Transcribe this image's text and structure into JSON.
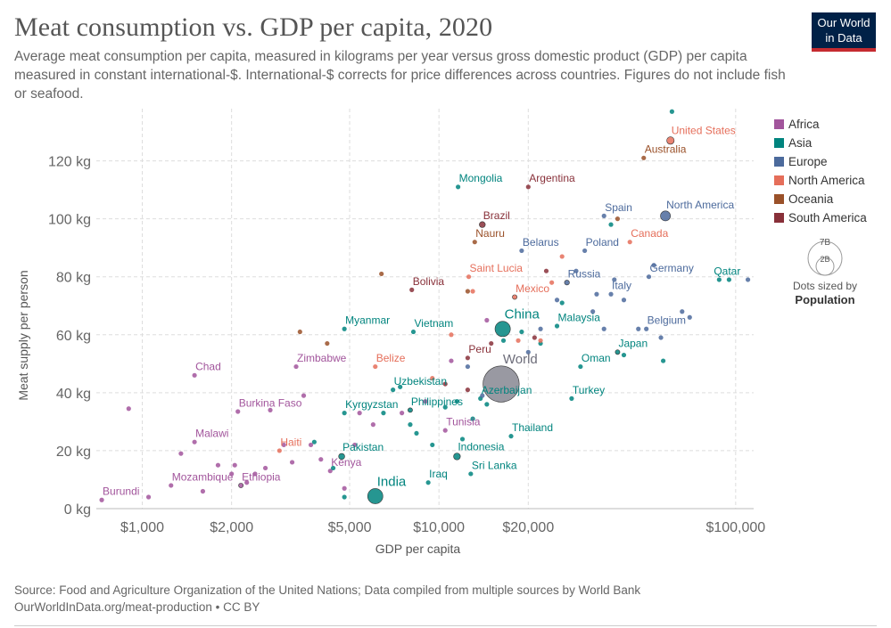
{
  "header": {
    "title": "Meat consumption vs. GDP per capita, 2020",
    "subtitle": "Average meat consumption per capita, measured in kilograms per year versus gross domestic product (GDP) per capita measured in constant international-$. International-$ corrects for price differences across countries. Figures do not include fish or seafood.",
    "logo_line1": "Our World",
    "logo_line2": "in Data"
  },
  "footer": {
    "source": "Source: Food and Agriculture Organization of the United Nations; Data compiled from multiple sources by World Bank",
    "url": "OurWorldInData.org/meat-production • CC BY"
  },
  "colors": {
    "Africa": "#a2559c",
    "Asia": "#00847e",
    "Europe": "#4c6a9c",
    "North America": "#e56e5a",
    "Oceania": "#9a5129",
    "South America": "#883039",
    "World": "#6d6d7a"
  },
  "size_legend": {
    "big": "7B",
    "small": "2B",
    "caption": "Dots sized by",
    "caption_bold": "Population"
  },
  "chart_data": {
    "type": "scatter",
    "title": "Meat consumption vs. GDP per capita, 2020",
    "xlabel": "GDP per capita",
    "ylabel": "Meat supply per person",
    "x_scale": "log",
    "xlim": [
      700,
      115000
    ],
    "ylim": [
      0,
      138
    ],
    "x_ticks": [
      1000,
      2000,
      5000,
      10000,
      20000,
      100000
    ],
    "x_tick_labels": [
      "$1,000",
      "$2,000",
      "$5,000",
      "$10,000",
      "$20,000",
      "$100,000"
    ],
    "y_ticks": [
      0,
      20,
      40,
      60,
      80,
      100,
      120
    ],
    "y_tick_labels": [
      "0 kg",
      "20 kg",
      "40 kg",
      "60 kg",
      "80 kg",
      "100 kg",
      "120 kg"
    ],
    "grid": true,
    "legend_position": "right",
    "legend": [
      "Africa",
      "Asia",
      "Europe",
      "North America",
      "Oceania",
      "South America"
    ],
    "points": [
      {
        "label": "World",
        "region": "World",
        "x": 16200,
        "y": 43,
        "pop": 7800
      },
      {
        "label": "China",
        "region": "Asia",
        "x": 16400,
        "y": 62,
        "pop": 1400
      },
      {
        "label": "India",
        "region": "Asia",
        "x": 6100,
        "y": 4.3,
        "pop": 1380
      },
      {
        "label": "United States",
        "region": "North America",
        "x": 60300,
        "y": 127,
        "pop": 331
      },
      {
        "label": "North America",
        "region": "Europe",
        "x": 58000,
        "y": 101,
        "pop": 590
      },
      {
        "label": "Australia",
        "region": "Oceania",
        "x": 49000,
        "y": 121,
        "pop": 25
      },
      {
        "label": "Mongolia",
        "region": "Asia",
        "x": 11600,
        "y": 111,
        "pop": 3
      },
      {
        "label": "Argentina",
        "region": "South America",
        "x": 20000,
        "y": 111,
        "pop": 45
      },
      {
        "label": "Brazil",
        "region": "South America",
        "x": 14000,
        "y": 98,
        "pop": 212
      },
      {
        "label": "Nauru",
        "region": "Oceania",
        "x": 13200,
        "y": 92,
        "pop": 1
      },
      {
        "label": "Spain",
        "region": "Europe",
        "x": 36000,
        "y": 101,
        "pop": 47
      },
      {
        "label": "Canada",
        "region": "North America",
        "x": 44000,
        "y": 92,
        "pop": 38
      },
      {
        "label": "Belarus",
        "region": "Europe",
        "x": 19000,
        "y": 89,
        "pop": 9
      },
      {
        "label": "Poland",
        "region": "Europe",
        "x": 31000,
        "y": 89,
        "pop": 38
      },
      {
        "label": "Bolivia",
        "region": "South America",
        "x": 8100,
        "y": 75.5,
        "pop": 12
      },
      {
        "label": "Saint Lucia",
        "region": "North America",
        "x": 12600,
        "y": 80,
        "pop": 1
      },
      {
        "label": "Russia",
        "region": "Europe",
        "x": 27000,
        "y": 78,
        "pop": 144
      },
      {
        "label": "Mexico",
        "region": "North America",
        "x": 18000,
        "y": 73,
        "pop": 129
      },
      {
        "label": "Germany",
        "region": "Europe",
        "x": 51000,
        "y": 80,
        "pop": 83
      },
      {
        "label": "Qatar",
        "region": "Asia",
        "x": 88000,
        "y": 79,
        "pop": 3
      },
      {
        "label": "Italy",
        "region": "Europe",
        "x": 38000,
        "y": 74,
        "pop": 60
      },
      {
        "label": "Malaysia",
        "region": "Asia",
        "x": 25000,
        "y": 63,
        "pop": 32
      },
      {
        "label": "Belgium",
        "region": "Europe",
        "x": 50000,
        "y": 62,
        "pop": 12
      },
      {
        "label": "Myanmar",
        "region": "Asia",
        "x": 4800,
        "y": 62,
        "pop": 54
      },
      {
        "label": "Vietnam",
        "region": "Asia",
        "x": 8200,
        "y": 61,
        "pop": 97
      },
      {
        "label": "Chad",
        "region": "Africa",
        "x": 1500,
        "y": 46,
        "pop": 16
      },
      {
        "label": "Zimbabwe",
        "region": "Africa",
        "x": 3300,
        "y": 49,
        "pop": 15
      },
      {
        "label": "Belize",
        "region": "North America",
        "x": 6100,
        "y": 49,
        "pop": 1
      },
      {
        "label": "Peru",
        "region": "South America",
        "x": 12500,
        "y": 52,
        "pop": 33
      },
      {
        "label": "Japan",
        "region": "Asia",
        "x": 40000,
        "y": 54,
        "pop": 126
      },
      {
        "label": "Oman",
        "region": "Asia",
        "x": 30000,
        "y": 49,
        "pop": 5
      },
      {
        "label": "Uzbekistan",
        "region": "Asia",
        "x": 7000,
        "y": 41,
        "pop": 34
      },
      {
        "label": "Azerbaijan",
        "region": "Asia",
        "x": 13800,
        "y": 38,
        "pop": 10
      },
      {
        "label": "Turkey",
        "region": "Asia",
        "x": 28000,
        "y": 38,
        "pop": 84
      },
      {
        "label": "Burkina Faso",
        "region": "Africa",
        "x": 2100,
        "y": 33.5,
        "pop": 21
      },
      {
        "label": "Kyrgyzstan",
        "region": "Asia",
        "x": 4800,
        "y": 33,
        "pop": 7
      },
      {
        "label": "Philippines",
        "region": "Asia",
        "x": 8000,
        "y": 34,
        "pop": 110
      },
      {
        "label": "Tunisia",
        "region": "Africa",
        "x": 10500,
        "y": 27,
        "pop": 12
      },
      {
        "label": "Thailand",
        "region": "Asia",
        "x": 17500,
        "y": 25,
        "pop": 70
      },
      {
        "label": "Malawi",
        "region": "Africa",
        "x": 1500,
        "y": 23,
        "pop": 19
      },
      {
        "label": "Haiti",
        "region": "North America",
        "x": 2900,
        "y": 20,
        "pop": 11
      },
      {
        "label": "Pakistan",
        "region": "Asia",
        "x": 4700,
        "y": 18,
        "pop": 220
      },
      {
        "label": "Indonesia",
        "region": "Asia",
        "x": 11500,
        "y": 18,
        "pop": 274
      },
      {
        "label": "Kenya",
        "region": "Africa",
        "x": 4300,
        "y": 13,
        "pop": 54
      },
      {
        "label": "Sri Lanka",
        "region": "Asia",
        "x": 12800,
        "y": 12,
        "pop": 22
      },
      {
        "label": "Mozambique",
        "region": "Africa",
        "x": 1250,
        "y": 8,
        "pop": 31
      },
      {
        "label": "Ethiopia",
        "region": "Africa",
        "x": 2150,
        "y": 8,
        "pop": 115
      },
      {
        "label": "Iraq",
        "region": "Asia",
        "x": 9200,
        "y": 9,
        "pop": 40
      },
      {
        "label": "Burundi",
        "region": "Africa",
        "x": 730,
        "y": 3,
        "pop": 12
      },
      {
        "label": "",
        "region": "Africa",
        "x": 900,
        "y": 34.5,
        "pop": 9
      },
      {
        "label": "",
        "region": "Africa",
        "x": 1050,
        "y": 4,
        "pop": 5
      },
      {
        "label": "",
        "region": "Africa",
        "x": 1350,
        "y": 19,
        "pop": 8
      },
      {
        "label": "",
        "region": "Africa",
        "x": 1600,
        "y": 6,
        "pop": 6
      },
      {
        "label": "",
        "region": "Africa",
        "x": 1800,
        "y": 15,
        "pop": 7
      },
      {
        "label": "",
        "region": "Africa",
        "x": 2000,
        "y": 12,
        "pop": 6
      },
      {
        "label": "",
        "region": "Africa",
        "x": 2050,
        "y": 15,
        "pop": 5
      },
      {
        "label": "",
        "region": "Africa",
        "x": 2250,
        "y": 9,
        "pop": 10
      },
      {
        "label": "",
        "region": "Africa",
        "x": 2400,
        "y": 12,
        "pop": 8
      },
      {
        "label": "",
        "region": "Africa",
        "x": 2600,
        "y": 14,
        "pop": 5
      },
      {
        "label": "",
        "region": "Africa",
        "x": 2700,
        "y": 34,
        "pop": 7
      },
      {
        "label": "",
        "region": "Africa",
        "x": 3000,
        "y": 22,
        "pop": 6
      },
      {
        "label": "",
        "region": "Africa",
        "x": 3200,
        "y": 16,
        "pop": 9
      },
      {
        "label": "",
        "region": "Africa",
        "x": 3500,
        "y": 39,
        "pop": 6
      },
      {
        "label": "",
        "region": "Africa",
        "x": 3700,
        "y": 22,
        "pop": 5
      },
      {
        "label": "",
        "region": "Africa",
        "x": 4000,
        "y": 17,
        "pop": 6
      },
      {
        "label": "",
        "region": "Africa",
        "x": 4800,
        "y": 7,
        "pop": 8
      },
      {
        "label": "",
        "region": "Africa",
        "x": 5200,
        "y": 22,
        "pop": 5
      },
      {
        "label": "",
        "region": "Africa",
        "x": 5400,
        "y": 33,
        "pop": 6
      },
      {
        "label": "",
        "region": "Africa",
        "x": 6000,
        "y": 29,
        "pop": 5
      },
      {
        "label": "",
        "region": "Africa",
        "x": 7500,
        "y": 33,
        "pop": 5
      },
      {
        "label": "",
        "region": "Africa",
        "x": 9000,
        "y": 37,
        "pop": 6
      },
      {
        "label": "",
        "region": "Africa",
        "x": 11000,
        "y": 51,
        "pop": 5
      },
      {
        "label": "",
        "region": "Africa",
        "x": 14500,
        "y": 65,
        "pop": 5
      },
      {
        "label": "",
        "region": "Asia",
        "x": 3800,
        "y": 23,
        "pop": 6
      },
      {
        "label": "",
        "region": "Asia",
        "x": 4400,
        "y": 14,
        "pop": 5
      },
      {
        "label": "",
        "region": "Asia",
        "x": 4800,
        "y": 4,
        "pop": 6
      },
      {
        "label": "",
        "region": "Asia",
        "x": 6500,
        "y": 33,
        "pop": 5
      },
      {
        "label": "",
        "region": "Asia",
        "x": 7400,
        "y": 42,
        "pop": 5
      },
      {
        "label": "",
        "region": "Asia",
        "x": 8000,
        "y": 29,
        "pop": 6
      },
      {
        "label": "",
        "region": "Asia",
        "x": 8400,
        "y": 26,
        "pop": 5
      },
      {
        "label": "",
        "region": "Asia",
        "x": 9500,
        "y": 22,
        "pop": 5
      },
      {
        "label": "",
        "region": "Asia",
        "x": 10500,
        "y": 35,
        "pop": 6
      },
      {
        "label": "",
        "region": "Asia",
        "x": 11500,
        "y": 37,
        "pop": 5
      },
      {
        "label": "",
        "region": "Asia",
        "x": 12000,
        "y": 24,
        "pop": 6
      },
      {
        "label": "",
        "region": "Asia",
        "x": 13000,
        "y": 31,
        "pop": 5
      },
      {
        "label": "",
        "region": "Asia",
        "x": 14500,
        "y": 36,
        "pop": 5
      },
      {
        "label": "",
        "region": "Asia",
        "x": 16500,
        "y": 58,
        "pop": 6
      },
      {
        "label": "",
        "region": "Asia",
        "x": 19000,
        "y": 61,
        "pop": 5
      },
      {
        "label": "",
        "region": "Asia",
        "x": 22000,
        "y": 57,
        "pop": 6
      },
      {
        "label": "",
        "region": "Asia",
        "x": 26000,
        "y": 71,
        "pop": 5
      },
      {
        "label": "",
        "region": "Asia",
        "x": 38000,
        "y": 98,
        "pop": 6
      },
      {
        "label": "",
        "region": "Asia",
        "x": 42000,
        "y": 53,
        "pop": 5
      },
      {
        "label": "",
        "region": "Asia",
        "x": 57000,
        "y": 51,
        "pop": 6
      },
      {
        "label": "",
        "region": "Asia",
        "x": 61000,
        "y": 137,
        "pop": 5
      },
      {
        "label": "",
        "region": "Asia",
        "x": 95000,
        "y": 79,
        "pop": 5
      },
      {
        "label": "",
        "region": "Europe",
        "x": 12500,
        "y": 49,
        "pop": 5
      },
      {
        "label": "",
        "region": "Europe",
        "x": 14000,
        "y": 39,
        "pop": 6
      },
      {
        "label": "",
        "region": "Europe",
        "x": 20000,
        "y": 54,
        "pop": 5
      },
      {
        "label": "",
        "region": "Europe",
        "x": 22000,
        "y": 62,
        "pop": 6
      },
      {
        "label": "",
        "region": "Europe",
        "x": 25000,
        "y": 72,
        "pop": 5
      },
      {
        "label": "",
        "region": "Europe",
        "x": 29000,
        "y": 82,
        "pop": 6
      },
      {
        "label": "",
        "region": "Europe",
        "x": 33000,
        "y": 68,
        "pop": 5
      },
      {
        "label": "",
        "region": "Europe",
        "x": 34000,
        "y": 74,
        "pop": 6
      },
      {
        "label": "",
        "region": "Europe",
        "x": 36000,
        "y": 62,
        "pop": 5
      },
      {
        "label": "",
        "region": "Europe",
        "x": 39000,
        "y": 79,
        "pop": 6
      },
      {
        "label": "",
        "region": "Europe",
        "x": 42000,
        "y": 72,
        "pop": 5
      },
      {
        "label": "",
        "region": "Europe",
        "x": 47000,
        "y": 62,
        "pop": 6
      },
      {
        "label": "",
        "region": "Europe",
        "x": 53000,
        "y": 84,
        "pop": 5
      },
      {
        "label": "",
        "region": "Europe",
        "x": 56000,
        "y": 59,
        "pop": 6
      },
      {
        "label": "",
        "region": "Europe",
        "x": 66000,
        "y": 68,
        "pop": 5
      },
      {
        "label": "",
        "region": "Europe",
        "x": 70000,
        "y": 66,
        "pop": 5
      },
      {
        "label": "",
        "region": "Europe",
        "x": 110000,
        "y": 79,
        "pop": 5
      },
      {
        "label": "",
        "region": "North America",
        "x": 9500,
        "y": 45,
        "pop": 5
      },
      {
        "label": "",
        "region": "North America",
        "x": 11000,
        "y": 60,
        "pop": 5
      },
      {
        "label": "",
        "region": "North America",
        "x": 13000,
        "y": 75,
        "pop": 5
      },
      {
        "label": "",
        "region": "North America",
        "x": 18500,
        "y": 58,
        "pop": 5
      },
      {
        "label": "",
        "region": "North America",
        "x": 22000,
        "y": 58,
        "pop": 5
      },
      {
        "label": "",
        "region": "North America",
        "x": 24000,
        "y": 78,
        "pop": 5
      },
      {
        "label": "",
        "region": "North America",
        "x": 26000,
        "y": 87,
        "pop": 5
      },
      {
        "label": "",
        "region": "Oceania",
        "x": 3400,
        "y": 61,
        "pop": 5
      },
      {
        "label": "",
        "region": "Oceania",
        "x": 4200,
        "y": 57,
        "pop": 5
      },
      {
        "label": "",
        "region": "Oceania",
        "x": 6400,
        "y": 81,
        "pop": 5
      },
      {
        "label": "",
        "region": "Oceania",
        "x": 12500,
        "y": 75,
        "pop": 5
      },
      {
        "label": "",
        "region": "Oceania",
        "x": 40000,
        "y": 100,
        "pop": 5
      },
      {
        "label": "",
        "region": "South America",
        "x": 10500,
        "y": 43,
        "pop": 5
      },
      {
        "label": "",
        "region": "South America",
        "x": 12500,
        "y": 41,
        "pop": 5
      },
      {
        "label": "",
        "region": "South America",
        "x": 15000,
        "y": 57,
        "pop": 5
      },
      {
        "label": "",
        "region": "South America",
        "x": 21000,
        "y": 59,
        "pop": 5
      },
      {
        "label": "",
        "region": "South America",
        "x": 23000,
        "y": 82,
        "pop": 5
      }
    ]
  }
}
